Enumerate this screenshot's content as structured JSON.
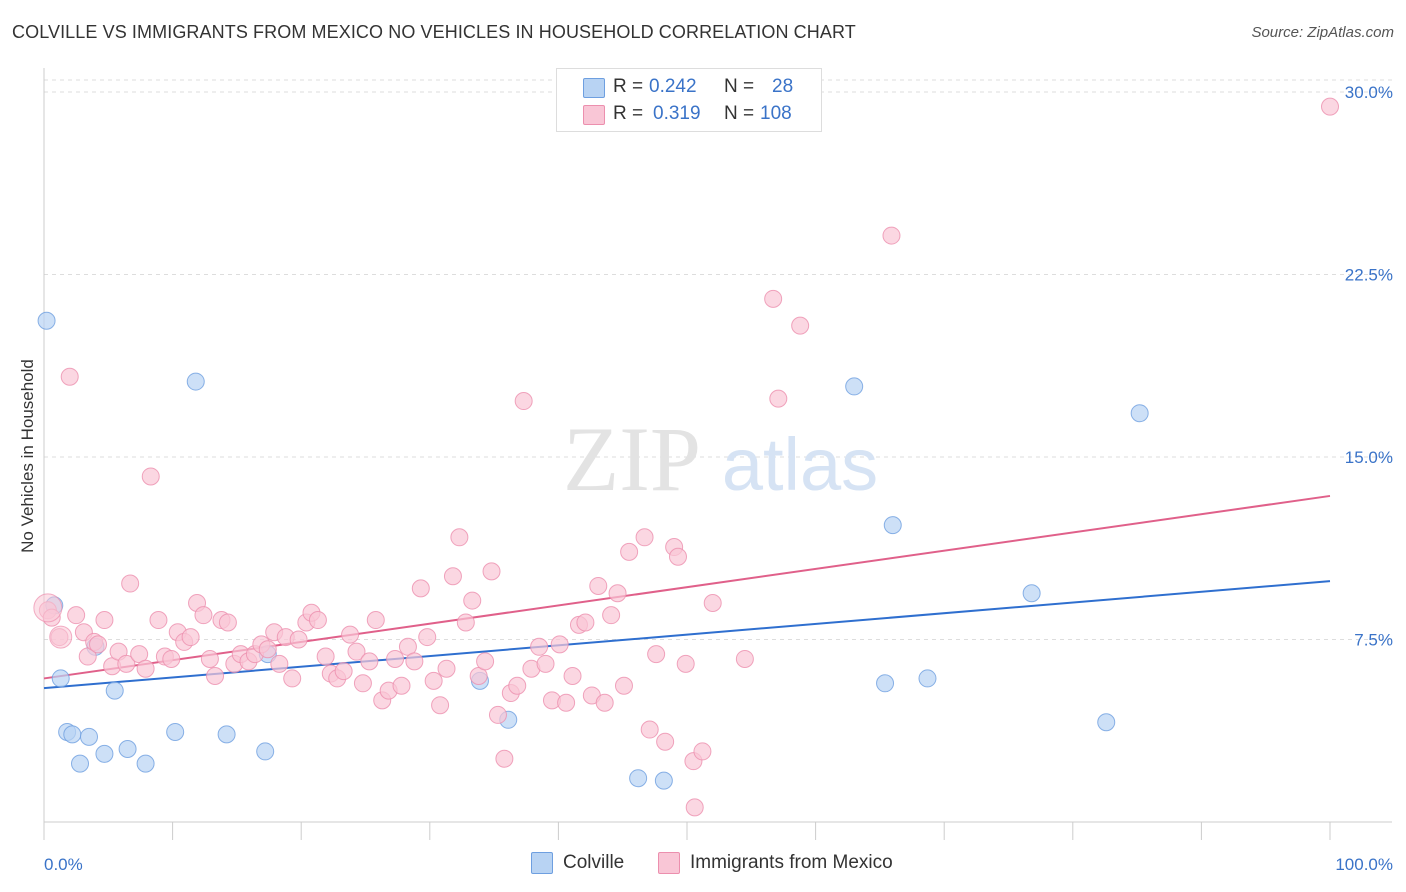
{
  "title": "COLVILLE VS IMMIGRANTS FROM MEXICO NO VEHICLES IN HOUSEHOLD CORRELATION CHART",
  "source": "Source: ZipAtlas.com",
  "watermark": {
    "zip": "ZIP",
    "atlas": "atlas"
  },
  "legend_box": {
    "rows": [
      {
        "r_label": "R =",
        "r_value": "0.242",
        "n_label": "N =",
        "n_value": "28"
      },
      {
        "r_label": "R =",
        "r_value": "0.319",
        "n_label": "N =",
        "n_value": "108"
      }
    ]
  },
  "legend_bottom": {
    "series": [
      "Colville",
      "Immigrants from Mexico"
    ]
  },
  "colors": {
    "blue_fill": "#b8d3f3",
    "blue_stroke": "#6e9fe0",
    "blue_line": "#2f6fcf",
    "pink_fill": "#f9c6d6",
    "pink_stroke": "#ec8fae",
    "pink_line": "#e0608a",
    "tick_label": "#3a73c8",
    "grid": "#dddddd"
  },
  "chart_data": {
    "type": "scatter",
    "title": "COLVILLE VS IMMIGRANTS FROM MEXICO NO VEHICLES IN HOUSEHOLD CORRELATION CHART",
    "xlabel": "",
    "ylabel": "No Vehicles in Household",
    "xlim": [
      0,
      100
    ],
    "ylim": [
      0,
      30
    ],
    "x_tick_labels": [
      "0.0%",
      "100.0%"
    ],
    "y_ticks": [
      7.5,
      15.0,
      22.5,
      30.0
    ],
    "y_tick_labels": [
      "7.5%",
      "15.0%",
      "22.5%",
      "30.0%"
    ],
    "grid": true,
    "legend_position": "top-center",
    "series": [
      {
        "name": "Colville",
        "R": 0.242,
        "N": 28,
        "trend": {
          "x": [
            0,
            100
          ],
          "y": [
            5.5,
            9.9
          ]
        },
        "points": [
          [
            0.2,
            20.6
          ],
          [
            0.8,
            8.9
          ],
          [
            1.3,
            5.9
          ],
          [
            1.8,
            3.7
          ],
          [
            2.2,
            3.6
          ],
          [
            2.8,
            2.4
          ],
          [
            3.5,
            3.5
          ],
          [
            4.0,
            7.2
          ],
          [
            4.7,
            2.8
          ],
          [
            5.5,
            5.4
          ],
          [
            6.5,
            3.0
          ],
          [
            7.9,
            2.4
          ],
          [
            10.2,
            3.7
          ],
          [
            11.8,
            18.1
          ],
          [
            14.2,
            3.6
          ],
          [
            17.2,
            2.9
          ],
          [
            17.4,
            6.9
          ],
          [
            33.9,
            5.8
          ],
          [
            36.1,
            4.2
          ],
          [
            46.2,
            1.8
          ],
          [
            48.2,
            1.7
          ],
          [
            63.0,
            17.9
          ],
          [
            65.4,
            5.7
          ],
          [
            66.0,
            12.2
          ],
          [
            68.7,
            5.9
          ],
          [
            76.8,
            9.4
          ],
          [
            82.6,
            4.1
          ],
          [
            85.2,
            16.8
          ]
        ]
      },
      {
        "name": "Immigrants from Mexico",
        "R": 0.319,
        "N": 108,
        "trend": {
          "x": [
            0,
            100
          ],
          "y": [
            5.9,
            13.4
          ]
        },
        "points": [
          [
            0.3,
            8.7
          ],
          [
            0.6,
            8.4
          ],
          [
            1.2,
            7.6
          ],
          [
            2.0,
            18.3
          ],
          [
            2.5,
            8.5
          ],
          [
            3.1,
            7.8
          ],
          [
            3.4,
            6.8
          ],
          [
            3.9,
            7.4
          ],
          [
            4.2,
            7.3
          ],
          [
            4.7,
            8.3
          ],
          [
            5.3,
            6.4
          ],
          [
            5.8,
            7.0
          ],
          [
            6.4,
            6.5
          ],
          [
            6.7,
            9.8
          ],
          [
            7.4,
            6.9
          ],
          [
            7.9,
            6.3
          ],
          [
            8.3,
            14.2
          ],
          [
            8.9,
            8.3
          ],
          [
            9.4,
            6.8
          ],
          [
            9.9,
            6.7
          ],
          [
            10.4,
            7.8
          ],
          [
            10.9,
            7.4
          ],
          [
            11.4,
            7.6
          ],
          [
            11.9,
            9.0
          ],
          [
            12.4,
            8.5
          ],
          [
            12.9,
            6.7
          ],
          [
            13.3,
            6.0
          ],
          [
            13.8,
            8.3
          ],
          [
            14.3,
            8.2
          ],
          [
            14.8,
            6.5
          ],
          [
            15.3,
            6.9
          ],
          [
            15.9,
            6.6
          ],
          [
            16.4,
            6.9
          ],
          [
            16.9,
            7.3
          ],
          [
            17.4,
            7.1
          ],
          [
            17.9,
            7.8
          ],
          [
            18.3,
            6.5
          ],
          [
            18.8,
            7.6
          ],
          [
            19.3,
            5.9
          ],
          [
            19.8,
            7.5
          ],
          [
            20.4,
            8.2
          ],
          [
            20.8,
            8.6
          ],
          [
            21.3,
            8.3
          ],
          [
            21.9,
            6.8
          ],
          [
            22.3,
            6.1
          ],
          [
            22.8,
            5.9
          ],
          [
            23.3,
            6.2
          ],
          [
            23.8,
            7.7
          ],
          [
            24.3,
            7.0
          ],
          [
            24.8,
            5.7
          ],
          [
            25.3,
            6.6
          ],
          [
            25.8,
            8.3
          ],
          [
            26.3,
            5.0
          ],
          [
            26.8,
            5.4
          ],
          [
            27.3,
            6.7
          ],
          [
            27.8,
            5.6
          ],
          [
            28.3,
            7.2
          ],
          [
            28.8,
            6.6
          ],
          [
            29.3,
            9.6
          ],
          [
            29.8,
            7.6
          ],
          [
            30.3,
            5.8
          ],
          [
            30.8,
            4.8
          ],
          [
            31.3,
            6.3
          ],
          [
            31.8,
            10.1
          ],
          [
            32.3,
            11.7
          ],
          [
            32.8,
            8.2
          ],
          [
            33.3,
            9.1
          ],
          [
            33.8,
            6.0
          ],
          [
            34.3,
            6.6
          ],
          [
            34.8,
            10.3
          ],
          [
            35.3,
            4.4
          ],
          [
            35.8,
            2.6
          ],
          [
            36.3,
            5.3
          ],
          [
            36.8,
            5.6
          ],
          [
            37.3,
            17.3
          ],
          [
            37.9,
            6.3
          ],
          [
            38.5,
            7.2
          ],
          [
            39.0,
            6.5
          ],
          [
            39.5,
            5.0
          ],
          [
            40.1,
            7.3
          ],
          [
            40.6,
            4.9
          ],
          [
            41.1,
            6.0
          ],
          [
            41.6,
            8.1
          ],
          [
            42.1,
            8.2
          ],
          [
            42.6,
            5.2
          ],
          [
            43.1,
            9.7
          ],
          [
            43.6,
            4.9
          ],
          [
            44.1,
            8.5
          ],
          [
            44.6,
            9.4
          ],
          [
            45.1,
            5.6
          ],
          [
            45.5,
            11.1
          ],
          [
            46.7,
            11.7
          ],
          [
            47.1,
            3.8
          ],
          [
            48.3,
            3.3
          ],
          [
            49.0,
            11.3
          ],
          [
            49.3,
            10.9
          ],
          [
            49.9,
            6.5
          ],
          [
            50.5,
            2.5
          ],
          [
            51.2,
            2.9
          ],
          [
            52.0,
            9.0
          ],
          [
            54.5,
            6.7
          ],
          [
            56.7,
            21.5
          ],
          [
            57.1,
            17.4
          ],
          [
            58.8,
            20.4
          ],
          [
            65.9,
            24.1
          ],
          [
            100.0,
            29.4
          ],
          [
            47.6,
            6.9
          ],
          [
            50.6,
            0.6
          ]
        ]
      }
    ]
  }
}
